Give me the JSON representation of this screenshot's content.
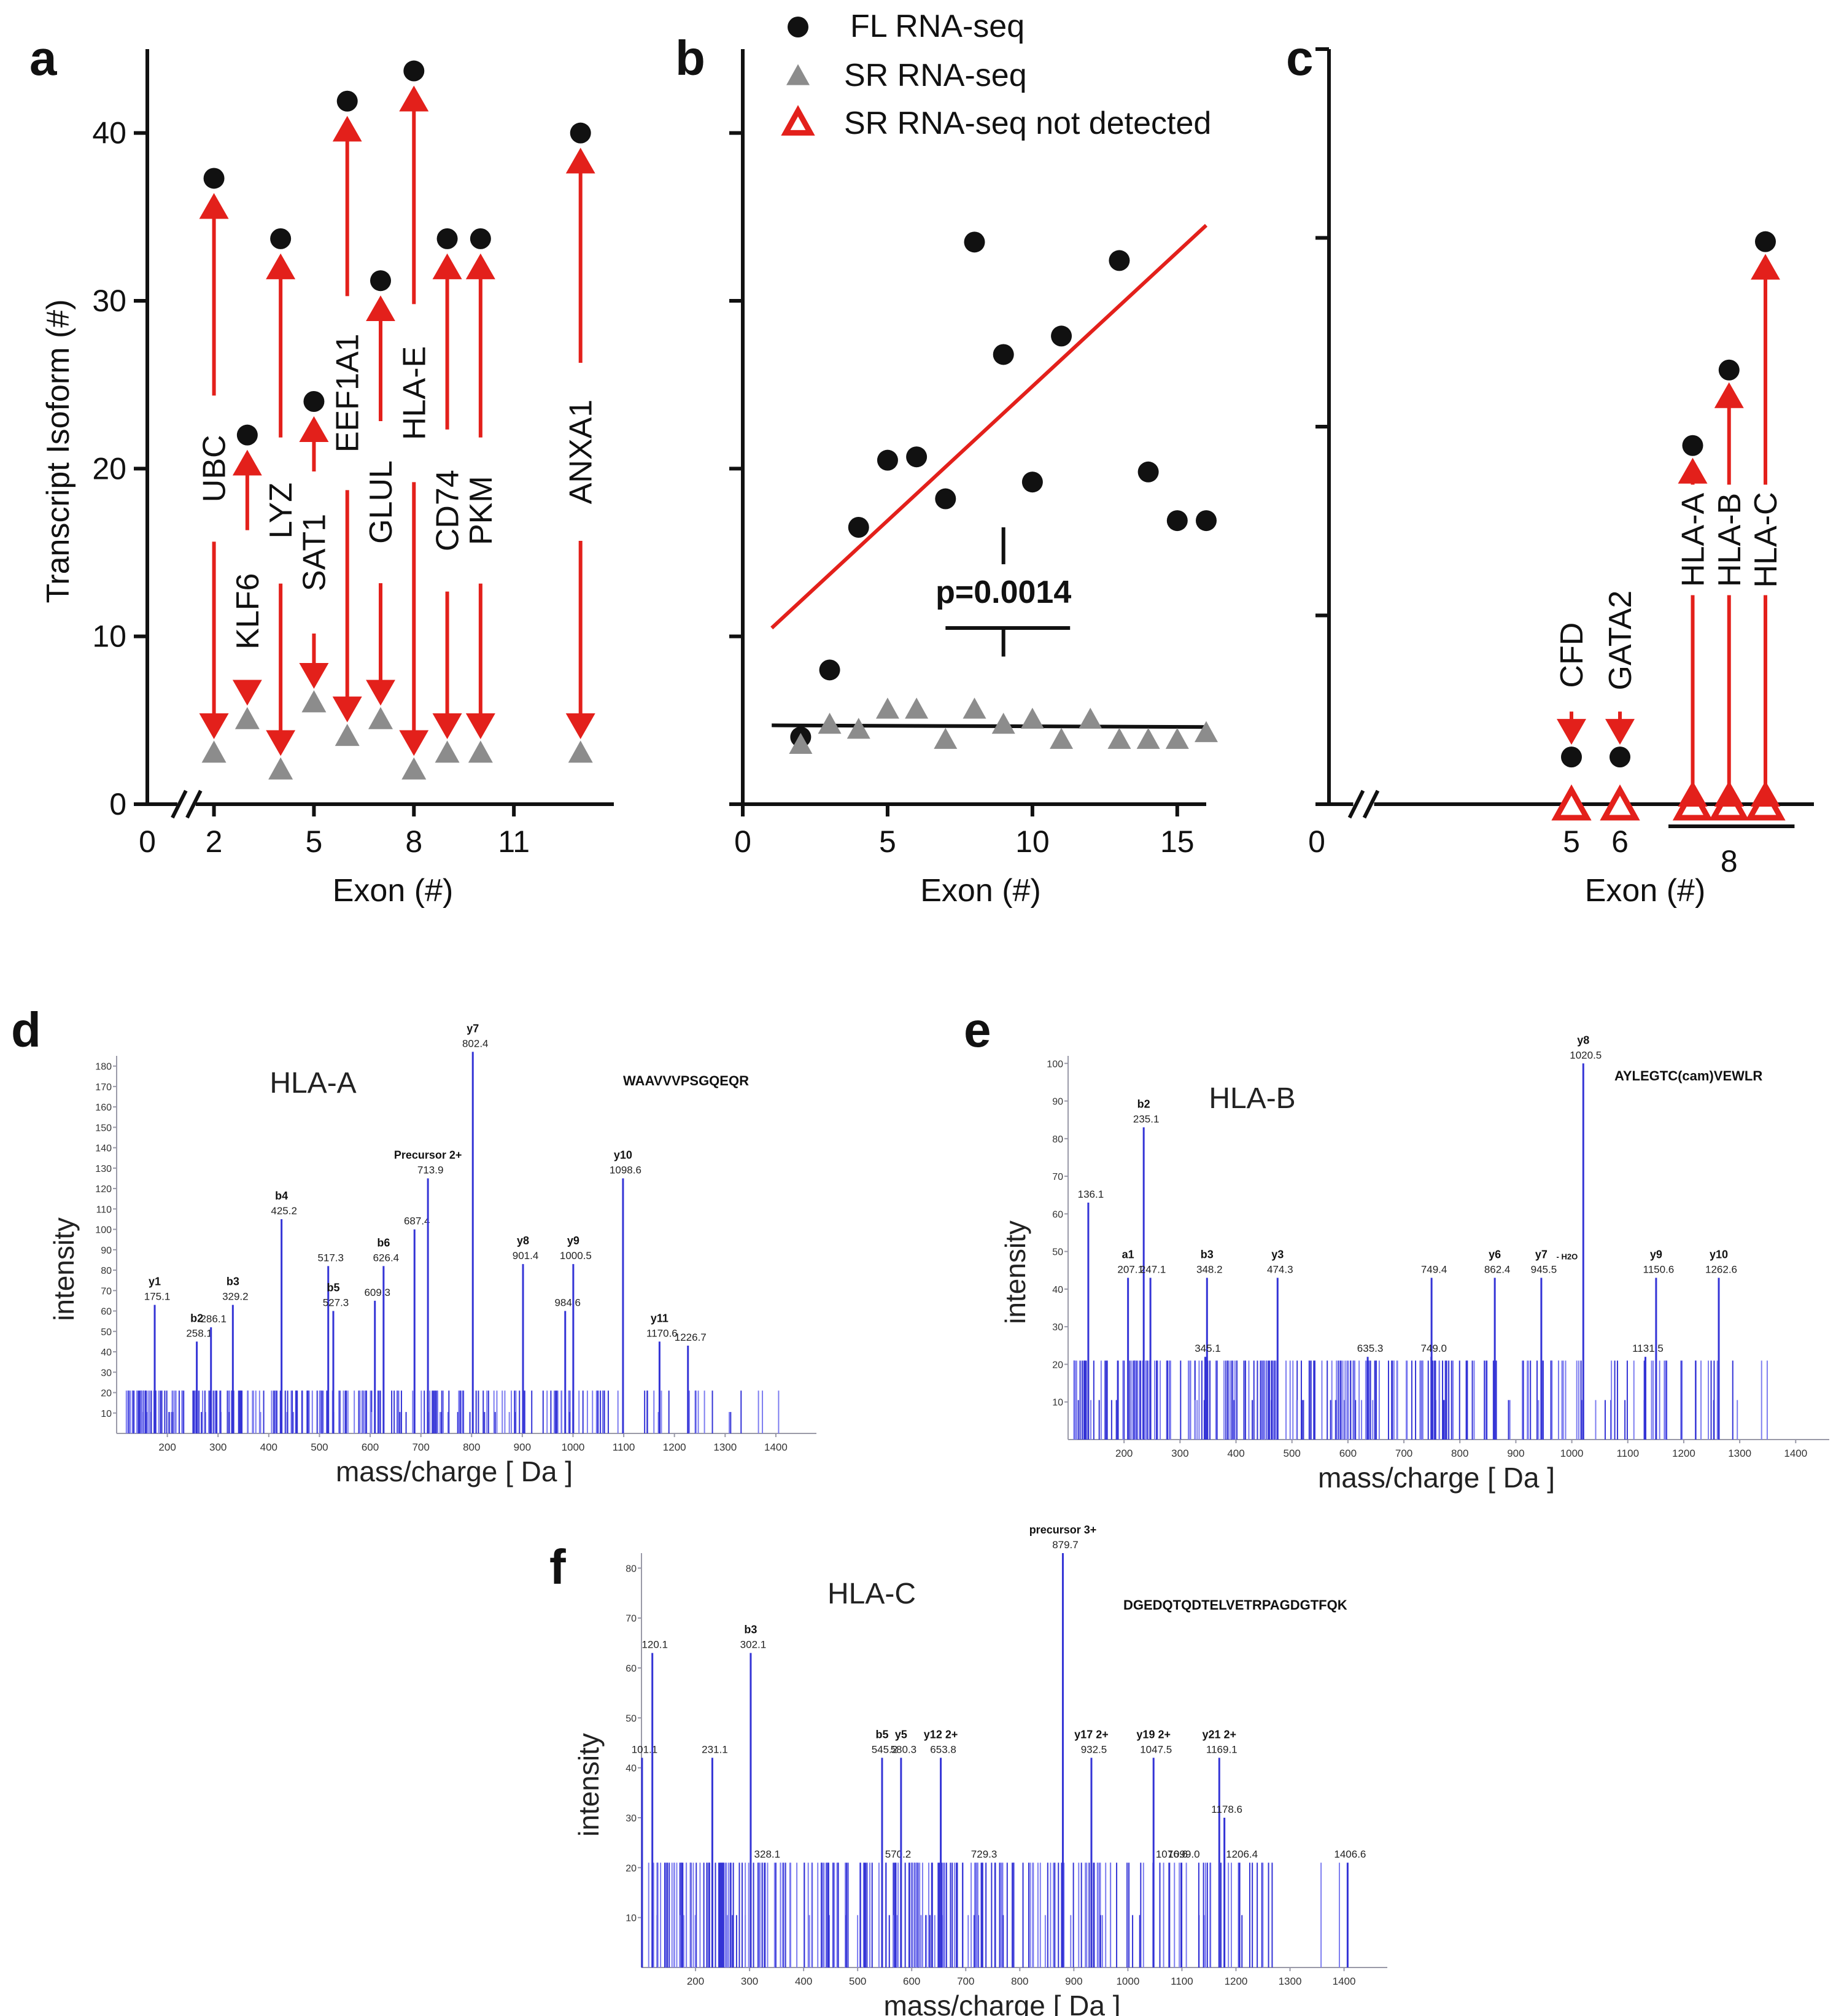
{
  "colors": {
    "red": "#e3201b",
    "grey": "#8c8c8c",
    "black": "#111111",
    "blue": "#3434d6",
    "blue_light": "#7d7df0"
  },
  "chart_data": [
    {
      "panel": "a",
      "type": "scatter",
      "ylabel": "Transcript Isoform (#)",
      "xlabel": "Exon (#)",
      "xlim": [
        0,
        14
      ],
      "ylim": [
        0,
        45
      ],
      "xticks": [
        0,
        2,
        5,
        8,
        11
      ],
      "yticks": [
        0,
        10,
        20,
        30,
        40
      ],
      "legend": [],
      "series": [
        {
          "name": "FL RNA-seq",
          "marker": "circle",
          "points": [
            [
              2,
              37.3
            ],
            [
              3,
              22
            ],
            [
              4,
              33.7
            ],
            [
              5,
              24
            ],
            [
              6,
              41.9
            ],
            [
              7,
              31.2
            ],
            [
              8,
              43.7
            ],
            [
              9,
              33.7
            ],
            [
              10,
              33.7
            ],
            [
              13,
              40
            ]
          ]
        },
        {
          "name": "SR RNA-seq",
          "marker": "triangle",
          "points": [
            [
              2,
              3
            ],
            [
              3,
              5
            ],
            [
              4,
              2
            ],
            [
              5,
              6
            ],
            [
              6,
              4
            ],
            [
              7,
              5
            ],
            [
              8,
              2
            ],
            [
              9,
              3
            ],
            [
              10,
              3
            ],
            [
              13,
              3
            ]
          ]
        }
      ],
      "arrows": [
        {
          "x": 2,
          "y1": 3,
          "y2": 37.3,
          "label": "UBC",
          "label_y": 20
        },
        {
          "x": 3,
          "y1": 5,
          "y2": 22,
          "label": "KLF6",
          "label_y": 11.5
        },
        {
          "x": 4,
          "y1": 2,
          "y2": 33.7,
          "label": "LYZ",
          "label_y": 17.5
        },
        {
          "x": 5,
          "y1": 6,
          "y2": 24,
          "label": "SAT1",
          "label_y": 15
        },
        {
          "x": 6,
          "y1": 4,
          "y2": 41.9,
          "label": "EEF1A1",
          "label_y": 24.5
        },
        {
          "x": 7,
          "y1": 5,
          "y2": 31.2,
          "label": "GLUL",
          "label_y": 18
        },
        {
          "x": 8,
          "y1": 2,
          "y2": 43.7,
          "label": "HLA-E",
          "label_y": 24.5
        },
        {
          "x": 9,
          "y1": 3,
          "y2": 33.7,
          "label": "CD74",
          "label_y": 17.5
        },
        {
          "x": 10,
          "y1": 3,
          "y2": 33.7,
          "label": "PKM",
          "label_y": 17.5
        },
        {
          "x": 13,
          "y1": 3,
          "y2": 40,
          "label": "ANXA1",
          "label_y": 21
        }
      ]
    },
    {
      "panel": "b",
      "type": "scatter",
      "xlabel": "Exon (#)",
      "ylabel": "",
      "xlim": [
        0,
        16
      ],
      "ylim": [
        0,
        45
      ],
      "xticks": [
        0,
        5,
        10,
        15
      ],
      "legend": [
        {
          "label": "FL RNA-seq",
          "marker": "circle"
        },
        {
          "label": "SR RNA-seq",
          "marker": "triangle"
        },
        {
          "label": "SR RNA-seq not detected",
          "marker": "open-triangle"
        }
      ],
      "series": [
        {
          "name": "FL RNA-seq",
          "marker": "circle",
          "points": [
            [
              2,
              4
            ],
            [
              3,
              8
            ],
            [
              4,
              16.5
            ],
            [
              5,
              20.5
            ],
            [
              6,
              20.7
            ],
            [
              7,
              18.2
            ],
            [
              8,
              33.5
            ],
            [
              9,
              26.8
            ],
            [
              10,
              19.2
            ],
            [
              11,
              27.9
            ],
            [
              13,
              32.4
            ],
            [
              14,
              19.8
            ],
            [
              15,
              16.9
            ],
            [
              16,
              16.9
            ]
          ]
        },
        {
          "name": "SR RNA-seq",
          "marker": "triangle",
          "points": [
            [
              2,
              3.5
            ],
            [
              3,
              4.7
            ],
            [
              4,
              4.4
            ],
            [
              5,
              5.6
            ],
            [
              6,
              5.6
            ],
            [
              7,
              3.8
            ],
            [
              8,
              5.6
            ],
            [
              9,
              4.7
            ],
            [
              10,
              5
            ],
            [
              11,
              3.8
            ],
            [
              12,
              5
            ],
            [
              13,
              3.8
            ],
            [
              14,
              3.8
            ],
            [
              15,
              3.8
            ],
            [
              16,
              4.2
            ]
          ]
        }
      ],
      "fit_lines": [
        {
          "series": "FL RNA-seq",
          "x": [
            1,
            16
          ],
          "y": [
            10.5,
            34.5
          ]
        },
        {
          "series": "SR RNA-seq",
          "x": [
            1,
            16
          ],
          "y": [
            4.7,
            4.6
          ]
        }
      ],
      "pvalue": "p=0.0014"
    },
    {
      "panel": "c",
      "type": "scatter",
      "xlabel": "Exon (#)",
      "ylabel": "",
      "xlim": [
        0,
        10
      ],
      "ylim": [
        0,
        40
      ],
      "xticks": [
        0,
        5,
        6
      ],
      "group_tick_label": "8",
      "series": [
        {
          "name": "FL RNA-seq",
          "marker": "circle",
          "points": [
            [
              5,
              2.5
            ],
            [
              6,
              2.5
            ],
            [
              7.5,
              19
            ],
            [
              8.25,
              23
            ],
            [
              9,
              29.8
            ]
          ]
        },
        {
          "name": "SR RNA-seq not detected",
          "marker": "open-triangle",
          "points": [
            [
              5,
              0
            ],
            [
              6,
              0
            ],
            [
              7.5,
              0
            ],
            [
              8.25,
              0
            ],
            [
              9,
              0
            ]
          ]
        }
      ],
      "arrows": [
        {
          "x": 5,
          "label": "CFD"
        },
        {
          "x": 6,
          "label": "GATA2"
        },
        {
          "x": 7.5,
          "label": "HLA-A"
        },
        {
          "x": 8.25,
          "label": "HLA-B"
        },
        {
          "x": 9,
          "label": "HLA-C"
        }
      ]
    },
    {
      "panel": "d",
      "type": "bar",
      "title": "HLA-A",
      "peptide": "WAAVVVPSGQEQR",
      "xlabel": "mass/charge [ Da ]",
      "ylabel": "intensity",
      "xlim": [
        100,
        1480
      ],
      "ylim": [
        0,
        185
      ],
      "xticks": [
        200,
        300,
        400,
        500,
        600,
        700,
        800,
        900,
        1000,
        1100,
        1200,
        1300,
        1400
      ],
      "yticks": [
        10,
        20,
        30,
        40,
        50,
        60,
        70,
        80,
        90,
        100,
        110,
        120,
        130,
        140,
        150,
        160,
        170,
        180
      ],
      "peaks": [
        {
          "mz": 175.1,
          "intensity": 63,
          "ion": "y1",
          "label": "175.1"
        },
        {
          "mz": 258.1,
          "intensity": 45,
          "ion": "b2",
          "label": "258.1"
        },
        {
          "mz": 286.1,
          "intensity": 52,
          "ion": "",
          "label": "286.1"
        },
        {
          "mz": 329.2,
          "intensity": 63,
          "ion": "b3",
          "label": "329.2"
        },
        {
          "mz": 425.2,
          "intensity": 105,
          "ion": "b4",
          "label": "425.2"
        },
        {
          "mz": 517.3,
          "intensity": 82,
          "ion": "",
          "label": "517.3"
        },
        {
          "mz": 527.3,
          "intensity": 60,
          "ion": "b5",
          "label": "527.3"
        },
        {
          "mz": 609.3,
          "intensity": 65,
          "ion": "",
          "label": "609.3"
        },
        {
          "mz": 626.4,
          "intensity": 82,
          "ion": "b6",
          "label": "626.4"
        },
        {
          "mz": 687.4,
          "intensity": 100,
          "ion": "",
          "label": "687.4"
        },
        {
          "mz": 713.9,
          "intensity": 125,
          "ion": "Precursor 2+",
          "label": "713.9"
        },
        {
          "mz": 802.4,
          "intensity": 187,
          "ion": "y7",
          "label": "802.4"
        },
        {
          "mz": 901.4,
          "intensity": 83,
          "ion": "y8",
          "label": "901.4"
        },
        {
          "mz": 984.6,
          "intensity": 60,
          "ion": "",
          "label": "984.6"
        },
        {
          "mz": 1000.5,
          "intensity": 83,
          "ion": "y9",
          "label": "1000.5"
        },
        {
          "mz": 1098.6,
          "intensity": 125,
          "ion": "y10",
          "label": "1098.6"
        },
        {
          "mz": 1170.6,
          "intensity": 45,
          "ion": "y11",
          "label": "1170.6"
        },
        {
          "mz": 1226.7,
          "intensity": 43,
          "ion": "",
          "label": "1226.7"
        }
      ]
    },
    {
      "panel": "e",
      "type": "bar",
      "title": "HLA-B",
      "peptide": "AYLEGTC(cam)VEWLR",
      "xlabel": "mass/charge [ Da ]",
      "ylabel": "intensity",
      "xlim": [
        100,
        1460
      ],
      "ylim": [
        0,
        102
      ],
      "xticks": [
        200,
        300,
        400,
        500,
        600,
        700,
        800,
        900,
        1000,
        1100,
        1200,
        1300,
        1400
      ],
      "yticks": [
        10,
        20,
        30,
        40,
        50,
        60,
        70,
        80,
        90,
        100
      ],
      "peaks": [
        {
          "mz": 136.1,
          "intensity": 63,
          "ion": "",
          "label": "136.1"
        },
        {
          "mz": 207.1,
          "intensity": 43,
          "ion": "a1",
          "label": "207.1"
        },
        {
          "mz": 235.1,
          "intensity": 83,
          "ion": "b2",
          "label": "235.1"
        },
        {
          "mz": 247.1,
          "intensity": 43,
          "ion": "",
          "label": "247.1"
        },
        {
          "mz": 348.2,
          "intensity": 43,
          "ion": "b3",
          "label": "348.2"
        },
        {
          "mz": 345.1,
          "intensity": 22,
          "ion": "",
          "label": "345.1"
        },
        {
          "mz": 474.3,
          "intensity": 43,
          "ion": "y3",
          "label": "474.3"
        },
        {
          "mz": 635.3,
          "intensity": 22,
          "ion": "",
          "label": "635.3"
        },
        {
          "mz": 749.4,
          "intensity": 43,
          "ion": "",
          "label": "749.4"
        },
        {
          "mz": 749.0,
          "intensity": 22,
          "ion": "",
          "label": "749.0"
        },
        {
          "mz": 862.4,
          "intensity": 43,
          "ion": "y6",
          "label": "862.4"
        },
        {
          "mz": 945.5,
          "intensity": 43,
          "ion": "y7",
          "label": "945.5",
          "suffix": "- H2O"
        },
        {
          "mz": 1020.5,
          "intensity": 100,
          "ion": "y8",
          "label": "1020.5"
        },
        {
          "mz": 1131.5,
          "intensity": 22,
          "ion": "",
          "label": "1131.5"
        },
        {
          "mz": 1150.6,
          "intensity": 43,
          "ion": "y9",
          "label": "1150.6"
        },
        {
          "mz": 1262.6,
          "intensity": 43,
          "ion": "y10",
          "label": "1262.6"
        }
      ]
    },
    {
      "panel": "f",
      "type": "bar",
      "title": "HLA-C",
      "peptide": "DGEDQTQDTELVETRPAGDGTFQK",
      "xlabel": "mass/charge [ Da ]",
      "ylabel": "intensity",
      "xlim": [
        100,
        1480
      ],
      "ylim": [
        0,
        83
      ],
      "xticks": [
        200,
        300,
        400,
        500,
        600,
        700,
        800,
        900,
        1000,
        1100,
        1200,
        1300,
        1400
      ],
      "yticks": [
        10,
        20,
        30,
        40,
        50,
        60,
        70,
        80
      ],
      "peaks": [
        {
          "mz": 101.1,
          "intensity": 42,
          "ion": "",
          "label": "101.1"
        },
        {
          "mz": 120.1,
          "intensity": 63,
          "ion": "",
          "label": "120.1"
        },
        {
          "mz": 231.1,
          "intensity": 42,
          "ion": "",
          "label": "231.1"
        },
        {
          "mz": 302.1,
          "intensity": 63,
          "ion": "b3",
          "label": "302.1"
        },
        {
          "mz": 328.1,
          "intensity": 21,
          "ion": "",
          "label": "328.1"
        },
        {
          "mz": 545.2,
          "intensity": 42,
          "ion": "b5",
          "label": "545.2"
        },
        {
          "mz": 570.2,
          "intensity": 21,
          "ion": "",
          "label": "570.2"
        },
        {
          "mz": 580.3,
          "intensity": 42,
          "ion": "y5",
          "label": "580.3"
        },
        {
          "mz": 653.8,
          "intensity": 42,
          "ion": "y12 2+",
          "label": "653.8"
        },
        {
          "mz": 729.3,
          "intensity": 21,
          "ion": "",
          "label": "729.3"
        },
        {
          "mz": 879.7,
          "intensity": 83,
          "ion": "precursor 3+",
          "label": "879.7"
        },
        {
          "mz": 932.5,
          "intensity": 42,
          "ion": "y17 2+",
          "label": "932.5"
        },
        {
          "mz": 1047.5,
          "intensity": 42,
          "ion": "y19 2+",
          "label": "1047.5"
        },
        {
          "mz": 1076.6,
          "intensity": 21,
          "ion": "",
          "label": "1076.6"
        },
        {
          "mz": 1099.0,
          "intensity": 21,
          "ion": "",
          "label": "1099.0"
        },
        {
          "mz": 1169.1,
          "intensity": 42,
          "ion": "y21 2+",
          "label": "1169.1"
        },
        {
          "mz": 1178.6,
          "intensity": 30,
          "ion": "",
          "label": "1178.6"
        },
        {
          "mz": 1206.4,
          "intensity": 21,
          "ion": "",
          "label": "1206.4"
        },
        {
          "mz": 1406.6,
          "intensity": 21,
          "ion": "",
          "label": "1406.6"
        }
      ]
    }
  ]
}
